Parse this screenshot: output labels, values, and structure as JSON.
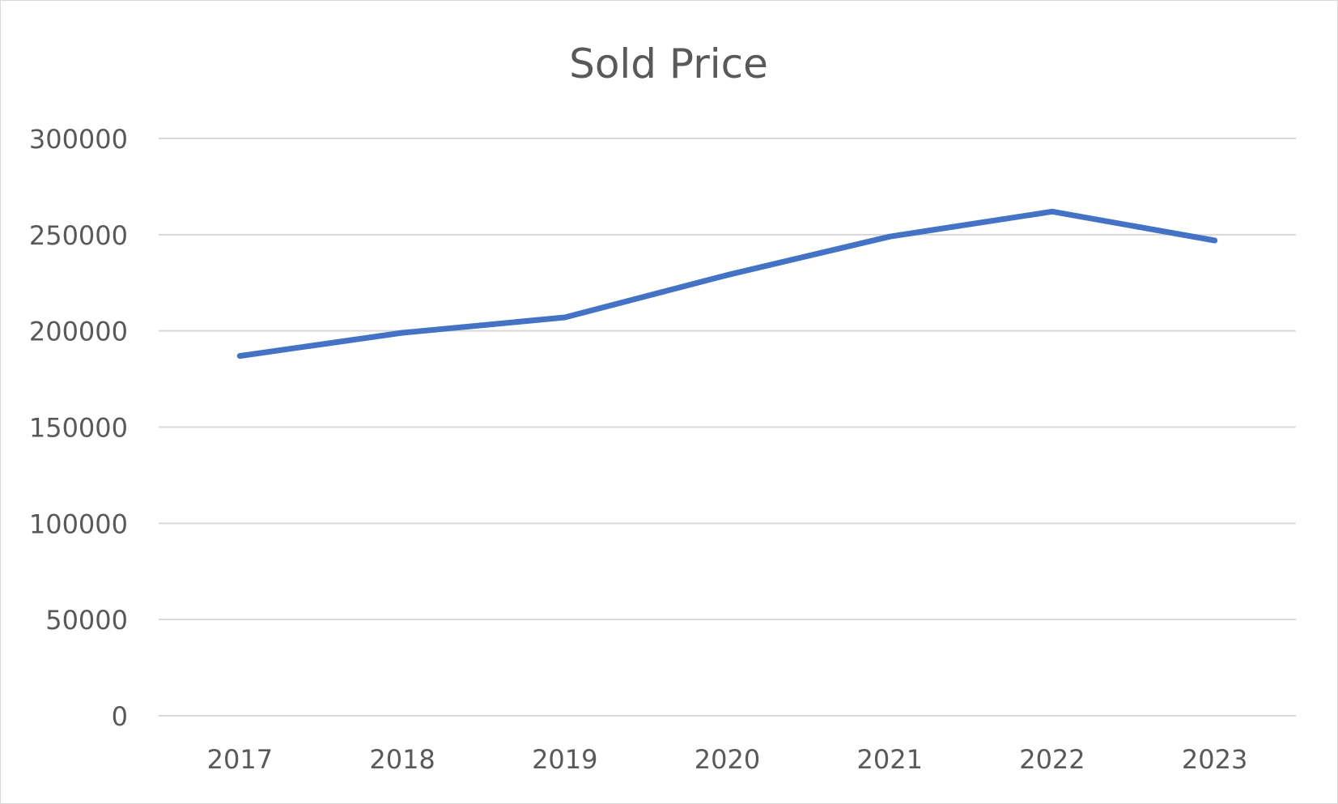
{
  "chart_data": {
    "type": "line",
    "title": "Sold Price",
    "xlabel": "",
    "ylabel": "",
    "categories": [
      "2017",
      "2018",
      "2019",
      "2020",
      "2021",
      "2022",
      "2023"
    ],
    "series": [
      {
        "values": [
          187000,
          199000,
          207000,
          229000,
          249000,
          262000,
          247000
        ],
        "color": "#4472c4"
      }
    ],
    "ylim": [
      0,
      300000
    ],
    "yticks": [
      "0",
      "50000",
      "100000",
      "150000",
      "200000",
      "250000",
      "300000"
    ],
    "grid": true,
    "legend": "none"
  }
}
